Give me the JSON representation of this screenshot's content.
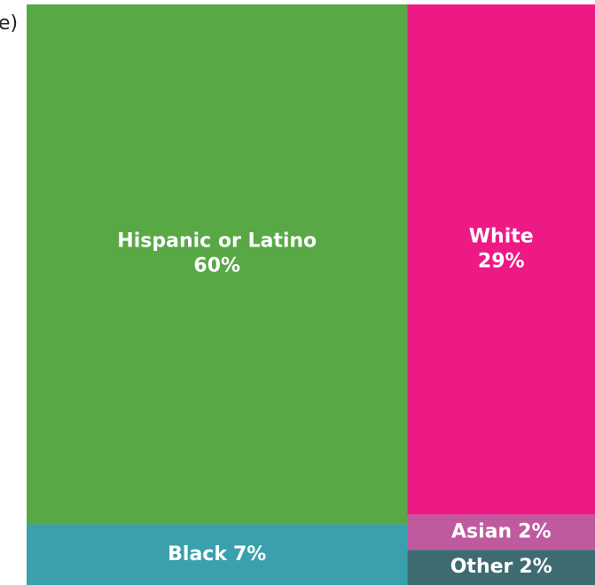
{
  "chart_data": {
    "type": "treemap",
    "title": "e)",
    "categories": [
      "Hispanic or Latino",
      "White",
      "Black",
      "Asian",
      "Other"
    ],
    "values": [
      60,
      29,
      7,
      2,
      2
    ],
    "value_labels": [
      "60%",
      "29%",
      "7%",
      "2%",
      "2%"
    ],
    "colors": [
      "#58a846",
      "#ed1a86",
      "#3aa0ad",
      "#c05a9f",
      "#3e6b72"
    ]
  }
}
